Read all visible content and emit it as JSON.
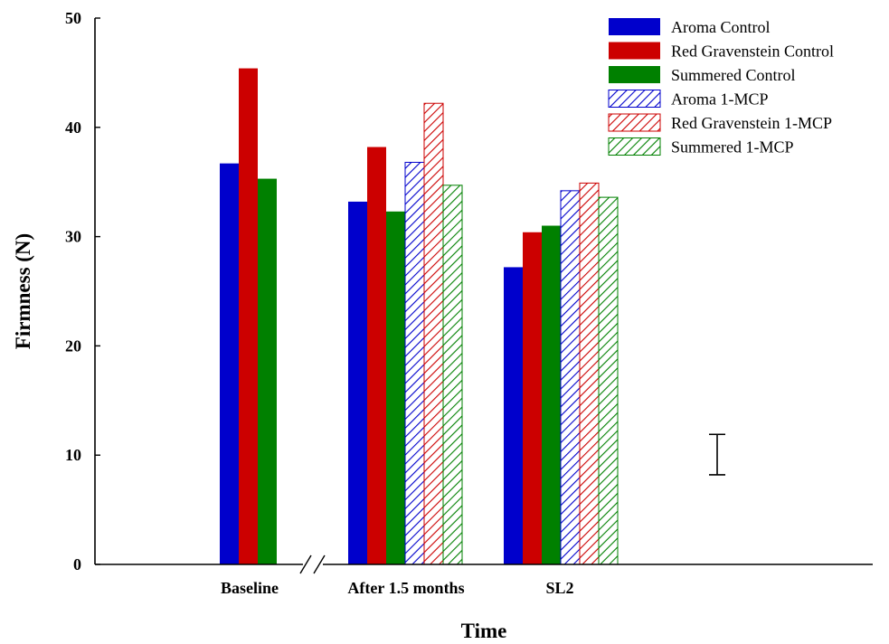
{
  "chart_data": {
    "type": "bar",
    "title": "",
    "xlabel": "Time",
    "ylabel": "Firmness (N)",
    "ylim": [
      0,
      50
    ],
    "yticks": [
      0,
      10,
      20,
      30,
      40,
      50
    ],
    "grid": false,
    "legend_position": "top-right",
    "categories": [
      "Baseline",
      "After 1.5 months",
      "SL2"
    ],
    "axis_break": true,
    "series": [
      {
        "name": "Aroma Control",
        "color": "#0000cc",
        "pattern": "solid",
        "values": [
          36.7,
          33.2,
          27.2
        ]
      },
      {
        "name": "Red Gravenstein Control",
        "color": "#cc0000",
        "pattern": "solid",
        "values": [
          45.4,
          38.2,
          30.4
        ]
      },
      {
        "name": "Summered Control",
        "color": "#008000",
        "pattern": "solid",
        "values": [
          35.3,
          32.3,
          31.0
        ]
      },
      {
        "name": "Aroma 1-MCP",
        "color": "#0000cc",
        "pattern": "hatched",
        "values": [
          null,
          36.8,
          34.2
        ]
      },
      {
        "name": "Red Gravenstein 1-MCP",
        "color": "#cc0000",
        "pattern": "hatched",
        "values": [
          null,
          42.2,
          34.9
        ]
      },
      {
        "name": "Summered 1-MCP",
        "color": "#008000",
        "pattern": "hatched",
        "values": [
          null,
          34.7,
          33.6
        ]
      }
    ],
    "error_bar": {
      "low": 8.2,
      "high": 11.9
    }
  }
}
